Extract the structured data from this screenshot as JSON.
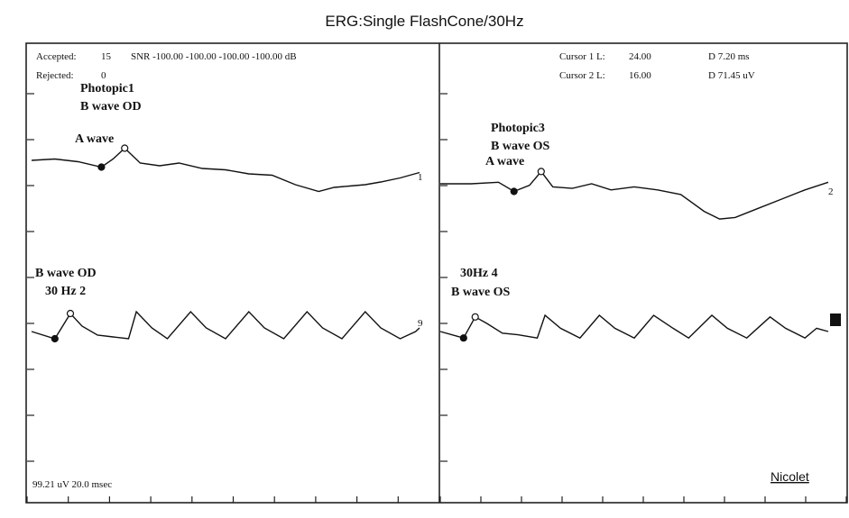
{
  "title": "ERG:Single FlashCone/30Hz",
  "header": {
    "accepted_label": "Accepted:",
    "accepted_value": "15",
    "snr_text": "SNR -100.00 -100.00 -100.00 -100.00 dB",
    "rejected_label": "Rejected:",
    "rejected_value": "0",
    "cursor1_label": "Cursor 1 L:",
    "cursor1_value": "24.00",
    "cursor1_delta": "D  7.20 ms",
    "cursor2_label": "Cursor 2 L:",
    "cursor2_value": "16.00",
    "cursor2_delta": "D  71.45 uV"
  },
  "footer": {
    "scale_text": "99.21 uV   20.0 msec",
    "brand": "Nicolet"
  },
  "panels": [
    {
      "traces": [
        {
          "label_lines": [
            "Photopic1",
            "B wave OD"
          ],
          "marker_label": "A wave",
          "end_label": "1"
        },
        {
          "label_lines": [
            "B wave OD",
            "30 Hz 2"
          ],
          "end_label": "9"
        }
      ]
    },
    {
      "traces": [
        {
          "label_lines": [
            "Photopic3",
            "B wave OS"
          ],
          "marker_label": "A wave",
          "end_label": "2"
        },
        {
          "label_lines": [
            "30Hz 4",
            "B wave OS"
          ],
          "end_label": ""
        }
      ]
    }
  ],
  "chart_data": {
    "type": "line",
    "title": "ERG:Single FlashCone/30Hz",
    "xlabel": "",
    "ylabel": "",
    "scale": {
      "amplitude_per_division_uV": 99.21,
      "time_per_division_ms": 20.0
    },
    "x_divisions": 10,
    "grid": false,
    "series": [
      {
        "name": "Photopic1",
        "x": [
          0,
          0.6,
          1.2,
          1.8,
          2.1,
          2.4,
          2.8,
          3.3,
          3.8,
          4.4,
          5,
          5.6,
          6.2,
          6.8,
          7.4,
          7.8,
          8.2,
          8.6,
          9,
          9.5,
          10
        ],
        "values": [
          0,
          0.05,
          -0.05,
          -0.25,
          0.05,
          0.45,
          -0.1,
          -0.2,
          -0.1,
          -0.3,
          -0.35,
          -0.5,
          -0.55,
          -0.9,
          -1.15,
          -1.0,
          -0.95,
          -0.9,
          -0.8,
          -0.65,
          -0.45
        ]
      },
      {
        "name": "Photopic3",
        "x": [
          0,
          0.8,
          1.5,
          1.9,
          2.3,
          2.6,
          2.9,
          3.4,
          3.9,
          4.4,
          5,
          5.6,
          6.2,
          6.8,
          7.2,
          7.6,
          8.2,
          8.8,
          9.4,
          10
        ],
        "values": [
          0,
          0,
          0.05,
          -0.25,
          -0.05,
          0.4,
          -0.1,
          -0.15,
          0,
          -0.2,
          -0.1,
          -0.2,
          -0.35,
          -0.9,
          -1.15,
          -1.1,
          -0.8,
          -0.5,
          -0.2,
          0.05
        ]
      },
      {
        "name": "30 Hz 2",
        "x": [
          0,
          0.6,
          1.0,
          1.3,
          1.7,
          2.1,
          2.5,
          2.7,
          3.1,
          3.5,
          4.1,
          4.5,
          5.0,
          5.6,
          6.0,
          6.5,
          7.1,
          7.5,
          8.0,
          8.6,
          9.0,
          9.5,
          9.9,
          10
        ],
        "values": [
          0,
          -0.2,
          0.5,
          0.15,
          -0.1,
          -0.15,
          -0.2,
          0.55,
          0.1,
          -0.2,
          0.55,
          0.1,
          -0.2,
          0.55,
          0.1,
          -0.2,
          0.55,
          0.1,
          -0.2,
          0.55,
          0.1,
          -0.2,
          0.0,
          0.1
        ]
      },
      {
        "name": "30Hz 4",
        "x": [
          0,
          0.6,
          0.9,
          1.2,
          1.6,
          2.0,
          2.5,
          2.7,
          3.1,
          3.6,
          4.1,
          4.5,
          5.0,
          5.5,
          6.0,
          6.4,
          7.0,
          7.4,
          7.9,
          8.5,
          8.9,
          9.4,
          9.7,
          10
        ],
        "values": [
          0,
          -0.2,
          0.45,
          0.25,
          -0.05,
          -0.1,
          -0.2,
          0.5,
          0.1,
          -0.2,
          0.5,
          0.1,
          -0.2,
          0.5,
          0.1,
          -0.2,
          0.5,
          0.1,
          -0.2,
          0.45,
          0.1,
          -0.2,
          0.1,
          0.0
        ]
      }
    ]
  }
}
